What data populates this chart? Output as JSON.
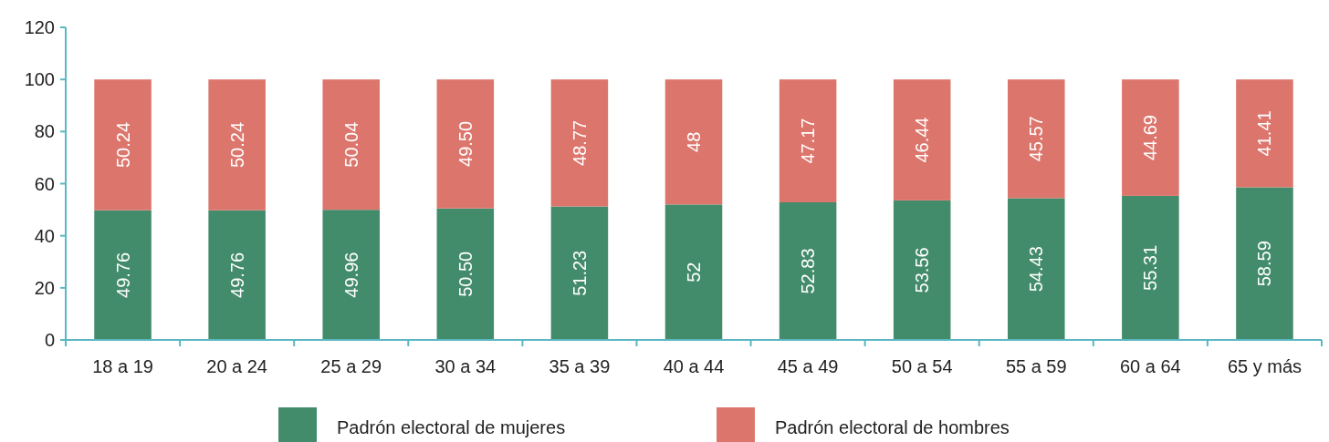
{
  "chart_data": {
    "type": "bar",
    "stacked": true,
    "categories": [
      "18 a 19",
      "20 a 24",
      "25 a 29",
      "30 a 34",
      "35 a 39",
      "40 a 44",
      "45 a 49",
      "50 a 54",
      "55 a 59",
      "60 a 64",
      "65 y más"
    ],
    "series": [
      {
        "name": "Padrón electoral de mujeres",
        "color": "#438c6b",
        "values": [
          49.76,
          49.76,
          49.96,
          50.5,
          51.23,
          52,
          52.83,
          53.56,
          54.43,
          55.31,
          58.59
        ],
        "value_labels": [
          "49.76",
          "49.76",
          "49.96",
          "50.50",
          "51.23",
          "52",
          "52.83",
          "53.56",
          "54.43",
          "55.31",
          "58.59"
        ]
      },
      {
        "name": "Padrón electoral de hombres",
        "color": "#dc766d",
        "values": [
          50.24,
          50.24,
          50.04,
          49.5,
          48.77,
          48,
          47.17,
          46.44,
          45.57,
          44.69,
          41.41
        ],
        "value_labels": [
          "50.24",
          "50.24",
          "50.04",
          "49.50",
          "48.77",
          "48",
          "47.17",
          "46.44",
          "45.57",
          "44.69",
          "41.41"
        ]
      }
    ],
    "ylim": [
      0,
      120
    ],
    "yticks": [
      0,
      20,
      40,
      60,
      80,
      100,
      120
    ],
    "legend": "bottom"
  }
}
